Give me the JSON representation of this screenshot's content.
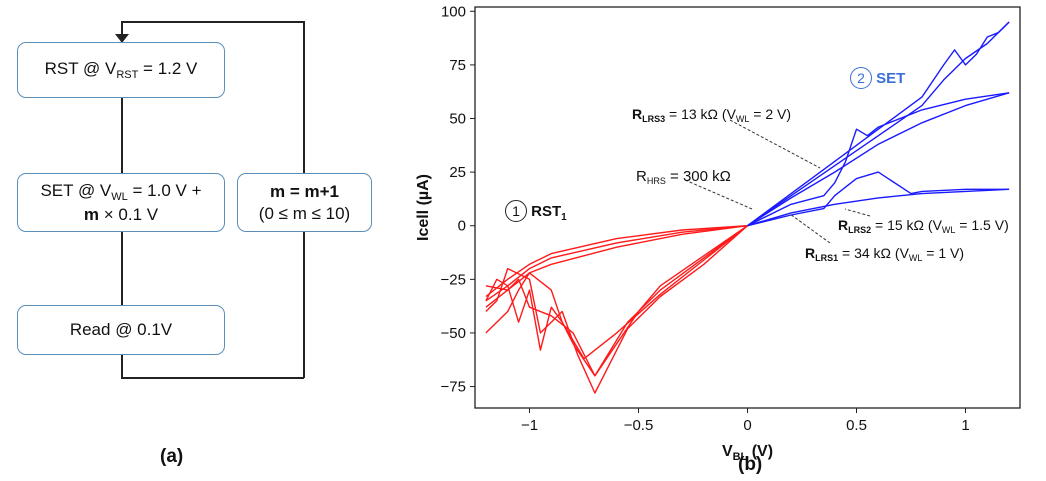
{
  "flowchart": {
    "rst": {
      "prefix": "RST @ V",
      "sub": "RST",
      "suffix": " = 1.2 V"
    },
    "set": {
      "prefix": "SET @ V",
      "sub": "WL",
      "suffix": " = 1.0 V +",
      "line2_bold": "m",
      "line2_rest": " × 0.1 V"
    },
    "read": {
      "label": "Read @ 0.1V"
    },
    "loop": {
      "line1": "m = m+1",
      "line2": "(0 ≤ m  ≤ 10)"
    },
    "panel_label": "(a)"
  },
  "panel_b_label": "(b)",
  "annotations": {
    "rst1": {
      "num": "1",
      "text": "RST",
      "sub": "1"
    },
    "set2": {
      "num": "2",
      "text": "SET"
    },
    "hrs": {
      "prefix": "R",
      "sub": "HRS",
      "suffix": " = 300 kΩ"
    },
    "lrs3": {
      "prefix": "R",
      "sub": "LRS3",
      "suffix": " = 13 kΩ (V",
      "sub2": "WL",
      "suffix2": " = 2 V)"
    },
    "lrs2": {
      "prefix": "R",
      "sub": "LRS2",
      "suffix": " = 15 kΩ (V",
      "sub2": "WL",
      "suffix2": " = 1.5 V)"
    },
    "lrs1": {
      "prefix": "R",
      "sub": "LRS1",
      "suffix": " = 34 kΩ (V",
      "sub2": "WL",
      "suffix2": " = 1 V)"
    }
  },
  "chart_data": {
    "type": "line",
    "xlabel": "V",
    "xlabel_sub": "BL",
    "xlabel_unit": " (V)",
    "ylabel": "Icell (µA)",
    "xlim": [
      -1.25,
      1.25
    ],
    "ylim": [
      -85,
      102
    ],
    "x_ticks": [
      -1,
      -0.5,
      0,
      0.5,
      1
    ],
    "x_tick_labels": [
      "−1",
      "−0.5",
      "0",
      "0.5",
      "1"
    ],
    "y_ticks": [
      -75,
      -50,
      -25,
      0,
      25,
      50,
      75,
      100
    ],
    "y_tick_labels": [
      "−75",
      "−50",
      "−25",
      "0",
      "25",
      "50",
      "75",
      "100"
    ],
    "colors": {
      "rst": "#ff1a1a",
      "set": "#1a1aff"
    },
    "series": [
      {
        "group": "rst",
        "x": [
          0,
          -0.2,
          -0.4,
          -0.55,
          -0.7,
          -0.8,
          -0.85,
          -0.9,
          -1.0,
          -1.05,
          -1.1,
          -1.15,
          -1.2
        ],
        "y": [
          0,
          -15,
          -30,
          -45,
          -70,
          -55,
          -45,
          -30,
          -22,
          -30,
          -40,
          -45,
          -50
        ]
      },
      {
        "group": "rst",
        "x": [
          0,
          -0.2,
          -0.4,
          -0.55,
          -0.7,
          -0.78,
          -0.85,
          -0.95,
          -1.0,
          -1.1,
          -1.15,
          -1.2
        ],
        "y": [
          0,
          -18,
          -33,
          -48,
          -78,
          -60,
          -40,
          -50,
          -25,
          -20,
          -35,
          -40
        ]
      },
      {
        "group": "rst",
        "x": [
          0,
          -0.2,
          -0.4,
          -0.6,
          -0.75,
          -0.85,
          -0.9,
          -0.95,
          -1.0,
          -1.05,
          -1.1,
          -1.15,
          -1.2
        ],
        "y": [
          0,
          -16,
          -32,
          -50,
          -62,
          -45,
          -38,
          -58,
          -30,
          -45,
          -28,
          -25,
          -35
        ]
      },
      {
        "group": "rst",
        "x": [
          0,
          -0.2,
          -0.4,
          -0.5,
          -0.6,
          -0.7,
          -0.8,
          -0.9,
          -1.0,
          -1.05,
          -1.1,
          -1.2
        ],
        "y": [
          0,
          -14,
          -28,
          -40,
          -55,
          -70,
          -50,
          -42,
          -38,
          -25,
          -30,
          -28
        ]
      },
      {
        "group": "rst",
        "x": [
          0,
          -0.3,
          -0.6,
          -0.9,
          -1.0,
          -1.1,
          -1.2
        ],
        "y": [
          0,
          -3,
          -8,
          -15,
          -20,
          -28,
          -35
        ]
      },
      {
        "group": "rst",
        "x": [
          0,
          -0.3,
          -0.6,
          -0.9,
          -1.0,
          -1.1,
          -1.2
        ],
        "y": [
          0,
          -4,
          -10,
          -18,
          -22,
          -30,
          -38
        ]
      },
      {
        "group": "rst",
        "x": [
          0,
          -0.3,
          -0.6,
          -0.9,
          -1.0,
          -1.1,
          -1.2
        ],
        "y": [
          0,
          -2,
          -6,
          -13,
          -18,
          -25,
          -33
        ]
      },
      {
        "group": "set",
        "x": [
          0,
          0.2,
          0.4,
          0.6,
          0.8,
          0.9,
          0.95,
          1.0,
          1.05,
          1.1,
          1.15,
          1.2
        ],
        "y": [
          0,
          15,
          30,
          45,
          60,
          75,
          82,
          75,
          80,
          88,
          90,
          95
        ]
      },
      {
        "group": "set",
        "x": [
          0,
          0.2,
          0.4,
          0.6,
          0.8,
          0.9,
          1.0,
          1.1,
          1.2
        ],
        "y": [
          0,
          14,
          28,
          42,
          56,
          68,
          78,
          85,
          95
        ]
      },
      {
        "group": "set",
        "x": [
          0,
          0.2,
          0.4,
          0.6,
          0.8,
          1.0,
          1.2
        ],
        "y": [
          0,
          13,
          25,
          38,
          48,
          56,
          62
        ]
      },
      {
        "group": "set",
        "x": [
          0,
          0.2,
          0.35,
          0.4,
          0.45,
          0.5,
          0.55,
          0.6,
          0.8,
          1.0,
          1.2
        ],
        "y": [
          0,
          10,
          14,
          20,
          30,
          45,
          42,
          46,
          54,
          59,
          62
        ]
      },
      {
        "group": "set",
        "x": [
          0,
          0.2,
          0.4,
          0.6,
          0.8,
          1.0,
          1.2
        ],
        "y": [
          0,
          6,
          10,
          13,
          15,
          16,
          17
        ]
      },
      {
        "group": "set",
        "x": [
          0,
          0.2,
          0.35,
          0.4,
          0.45,
          0.5,
          0.6,
          0.75,
          0.8,
          1.0,
          1.2
        ],
        "y": [
          0,
          5,
          8,
          14,
          18,
          22,
          25,
          15,
          16,
          17,
          17
        ]
      }
    ]
  }
}
